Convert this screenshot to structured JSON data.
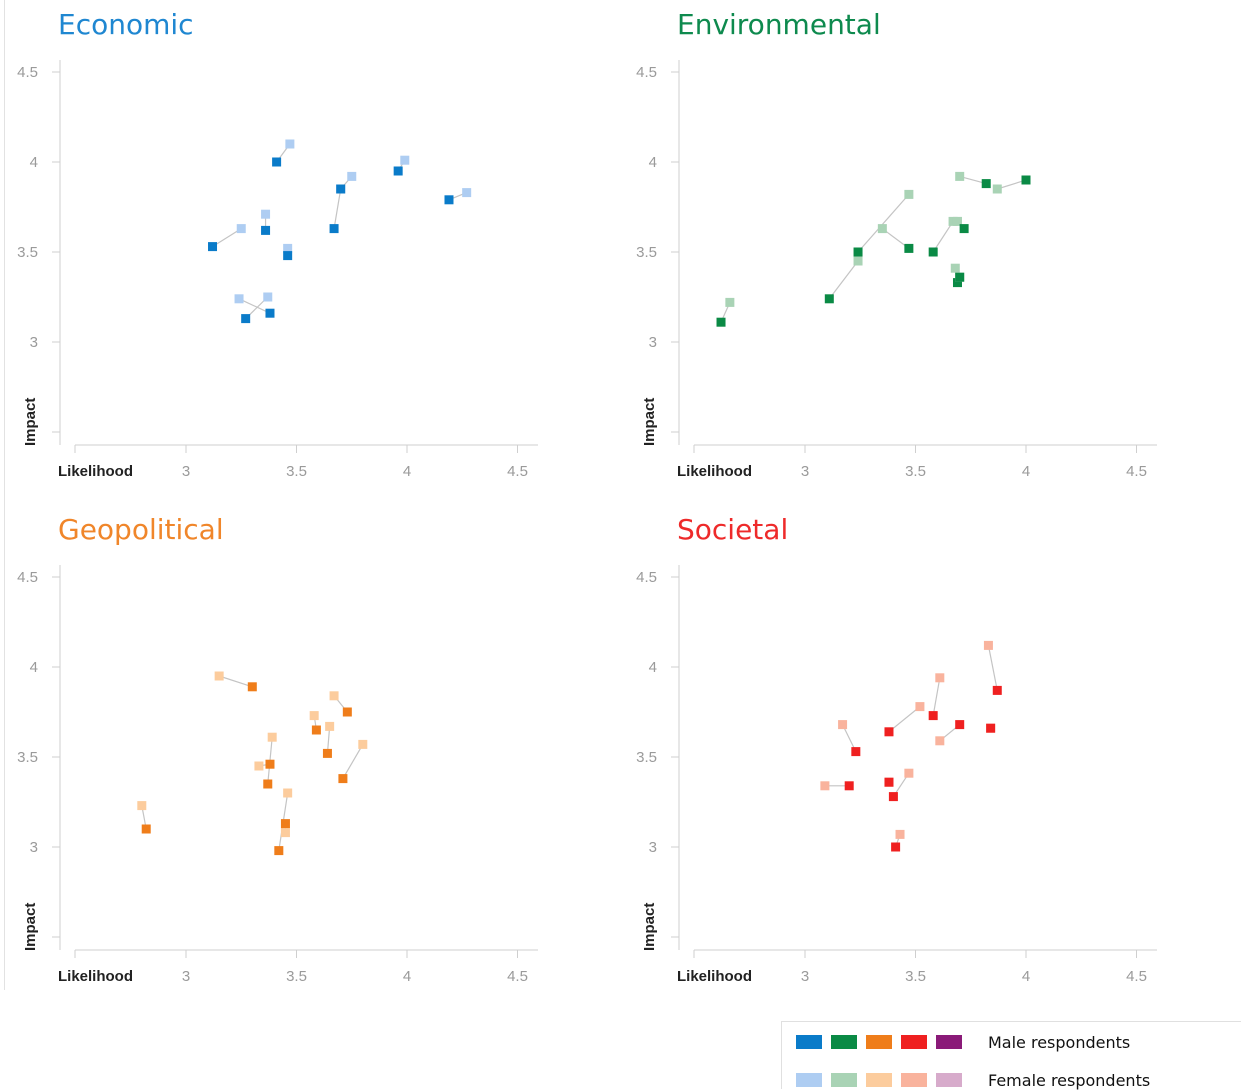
{
  "chart_data": [
    {
      "type": "scatter",
      "title": "Economic",
      "title_color": "#1f87d1",
      "xlabel": "Likelihood",
      "ylabel": "Impact",
      "xlim": [
        2.5,
        4.6
      ],
      "ylim": [
        2.5,
        4.6
      ],
      "xticks": [
        "3",
        "3.5",
        "4",
        "4.5"
      ],
      "yticks": [
        "3",
        "3.5",
        "4",
        "4.5"
      ],
      "male_color": "#0a7bc9",
      "female_color": "#aecdf2",
      "pairs": [
        {
          "male": [
            3.41,
            4.0
          ],
          "female": [
            3.47,
            4.1
          ]
        },
        {
          "male": [
            3.12,
            3.53
          ],
          "female": [
            3.25,
            3.63
          ]
        },
        {
          "male": [
            3.36,
            3.62
          ],
          "female": [
            3.36,
            3.71
          ]
        },
        {
          "male": [
            3.46,
            3.48
          ],
          "female": [
            3.46,
            3.52
          ]
        },
        {
          "male": [
            3.67,
            3.63
          ],
          "female": [
            3.7,
            3.85
          ]
        },
        {
          "male": [
            3.7,
            3.85
          ],
          "female": [
            3.75,
            3.92
          ]
        },
        {
          "male": [
            3.96,
            3.95
          ],
          "female": [
            3.99,
            4.01
          ]
        },
        {
          "male": [
            4.19,
            3.79
          ],
          "female": [
            4.27,
            3.83
          ]
        },
        {
          "male": [
            3.27,
            3.13
          ],
          "female": [
            3.37,
            3.25
          ]
        },
        {
          "male": [
            3.38,
            3.16
          ],
          "female": [
            3.24,
            3.24
          ]
        }
      ]
    },
    {
      "type": "scatter",
      "title": "Environmental",
      "title_color": "#0e8a4e",
      "xlabel": "Likelihood",
      "ylabel": "Impact",
      "xlim": [
        2.5,
        4.6
      ],
      "ylim": [
        2.5,
        4.6
      ],
      "xticks": [
        "3",
        "3.5",
        "4",
        "4.5"
      ],
      "yticks": [
        "3",
        "3.5",
        "4",
        "4.5"
      ],
      "male_color": "#0a8a45",
      "female_color": "#a9d3b5",
      "pairs": [
        {
          "male": [
            2.62,
            3.11
          ],
          "female": [
            2.66,
            3.22
          ]
        },
        {
          "male": [
            3.11,
            3.24
          ],
          "female": [
            3.24,
            3.45
          ]
        },
        {
          "male": [
            3.24,
            3.5
          ],
          "female": [
            3.47,
            3.82
          ]
        },
        {
          "male": [
            3.47,
            3.52
          ],
          "female": [
            3.35,
            3.63
          ]
        },
        {
          "male": [
            3.58,
            3.5
          ],
          "female": [
            3.67,
            3.67
          ]
        },
        {
          "male": [
            3.72,
            3.63
          ],
          "female": [
            3.69,
            3.67
          ]
        },
        {
          "male": [
            3.69,
            3.33
          ],
          "female": [
            3.68,
            3.41
          ]
        },
        {
          "male": [
            3.7,
            3.36
          ],
          "female": [
            3.7,
            3.36
          ]
        },
        {
          "male": [
            3.82,
            3.88
          ],
          "female": [
            3.7,
            3.92
          ]
        },
        {
          "male": [
            4.0,
            3.9
          ],
          "female": [
            3.87,
            3.85
          ]
        }
      ]
    },
    {
      "type": "scatter",
      "title": "Geopolitical",
      "title_color": "#f0862a",
      "xlabel": "Likelihood",
      "ylabel": "Impact",
      "xlim": [
        2.5,
        4.6
      ],
      "ylim": [
        2.5,
        4.6
      ],
      "xticks": [
        "3",
        "3.5",
        "4",
        "4.5"
      ],
      "yticks": [
        "3",
        "3.5",
        "4",
        "4.5"
      ],
      "male_color": "#ef7d1a",
      "female_color": "#fccc9d",
      "pairs": [
        {
          "male": [
            2.82,
            3.1
          ],
          "female": [
            2.8,
            3.23
          ]
        },
        {
          "male": [
            3.3,
            3.89
          ],
          "female": [
            3.15,
            3.95
          ]
        },
        {
          "male": [
            3.38,
            3.46
          ],
          "female": [
            3.33,
            3.45
          ]
        },
        {
          "male": [
            3.37,
            3.35
          ],
          "female": [
            3.39,
            3.61
          ]
        },
        {
          "male": [
            3.45,
            3.13
          ],
          "female": [
            3.45,
            3.08
          ]
        },
        {
          "male": [
            3.42,
            2.98
          ],
          "female": [
            3.46,
            3.3
          ]
        },
        {
          "male": [
            3.59,
            3.65
          ],
          "female": [
            3.58,
            3.73
          ]
        },
        {
          "male": [
            3.64,
            3.52
          ],
          "female": [
            3.65,
            3.67
          ]
        },
        {
          "male": [
            3.73,
            3.75
          ],
          "female": [
            3.67,
            3.84
          ]
        },
        {
          "male": [
            3.71,
            3.38
          ],
          "female": [
            3.8,
            3.57
          ]
        }
      ]
    },
    {
      "type": "scatter",
      "title": "Societal",
      "title_color": "#ee2a2a",
      "xlabel": "Likelihood",
      "ylabel": "Impact",
      "xlim": [
        2.5,
        4.6
      ],
      "ylim": [
        2.5,
        4.6
      ],
      "xticks": [
        "3",
        "3.5",
        "4",
        "4.5"
      ],
      "yticks": [
        "3",
        "3.5",
        "4",
        "4.5"
      ],
      "male_color": "#ef2020",
      "female_color": "#f9b39d",
      "pairs": [
        {
          "male": [
            3.2,
            3.34
          ],
          "female": [
            3.09,
            3.34
          ]
        },
        {
          "male": [
            3.23,
            3.53
          ],
          "female": [
            3.17,
            3.68
          ]
        },
        {
          "male": [
            3.38,
            3.64
          ],
          "female": [
            3.52,
            3.78
          ]
        },
        {
          "male": [
            3.38,
            3.36
          ],
          "female": [
            3.38,
            3.36
          ]
        },
        {
          "male": [
            3.4,
            3.28
          ],
          "female": [
            3.47,
            3.41
          ]
        },
        {
          "male": [
            3.41,
            3.0
          ],
          "female": [
            3.43,
            3.07
          ]
        },
        {
          "male": [
            3.58,
            3.73
          ],
          "female": [
            3.61,
            3.94
          ]
        },
        {
          "male": [
            3.7,
            3.68
          ],
          "female": [
            3.61,
            3.59
          ]
        },
        {
          "male": [
            3.84,
            3.66
          ],
          "female": [
            3.84,
            3.66
          ]
        },
        {
          "male": [
            3.87,
            3.87
          ],
          "female": [
            3.83,
            4.12
          ]
        }
      ]
    }
  ],
  "legend": {
    "male_label": "Male respondents",
    "female_label": "Female respondents",
    "male_colors": [
      "#0a7bc9",
      "#0a8a45",
      "#ef7d1a",
      "#ef2020",
      "#8a1a78"
    ],
    "female_colors": [
      "#aecdf2",
      "#a9d3b5",
      "#fccc9d",
      "#f9b39d",
      "#d7abcb"
    ]
  }
}
